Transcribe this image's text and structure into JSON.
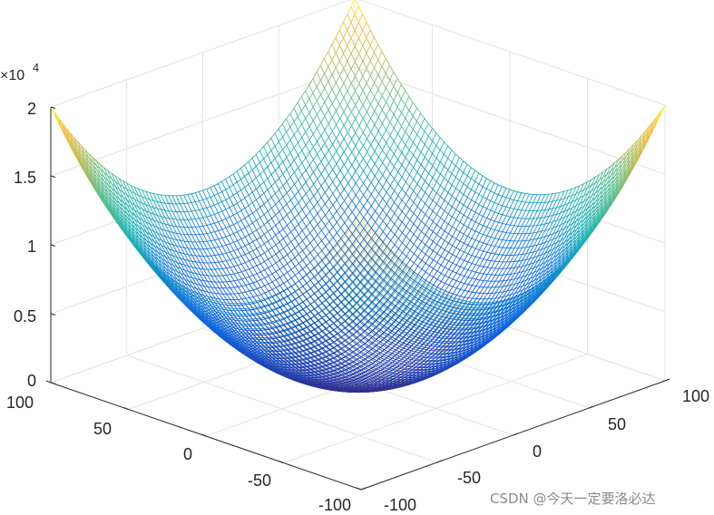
{
  "chart_data": {
    "type": "surface-mesh",
    "function": "z = x^2 + y^2",
    "title": "",
    "xlabel": "",
    "ylabel": "",
    "zlabel": "",
    "x_range": [
      -100,
      100
    ],
    "y_range": [
      -100,
      100
    ],
    "z_range": [
      0,
      20000
    ],
    "x_ticks": [
      "100",
      "50",
      "0",
      "-50",
      "-100"
    ],
    "y_ticks": [
      "-100",
      "-50",
      "0",
      "50",
      "100"
    ],
    "z_ticks": [
      "0",
      "0.5",
      "1",
      "1.5",
      "2"
    ],
    "z_multiplier": "×10",
    "z_exponent": "4",
    "mesh_resolution": 81,
    "colormap": "parula",
    "grid": true
  },
  "watermark": "CSDN @今天一定要洛必达"
}
